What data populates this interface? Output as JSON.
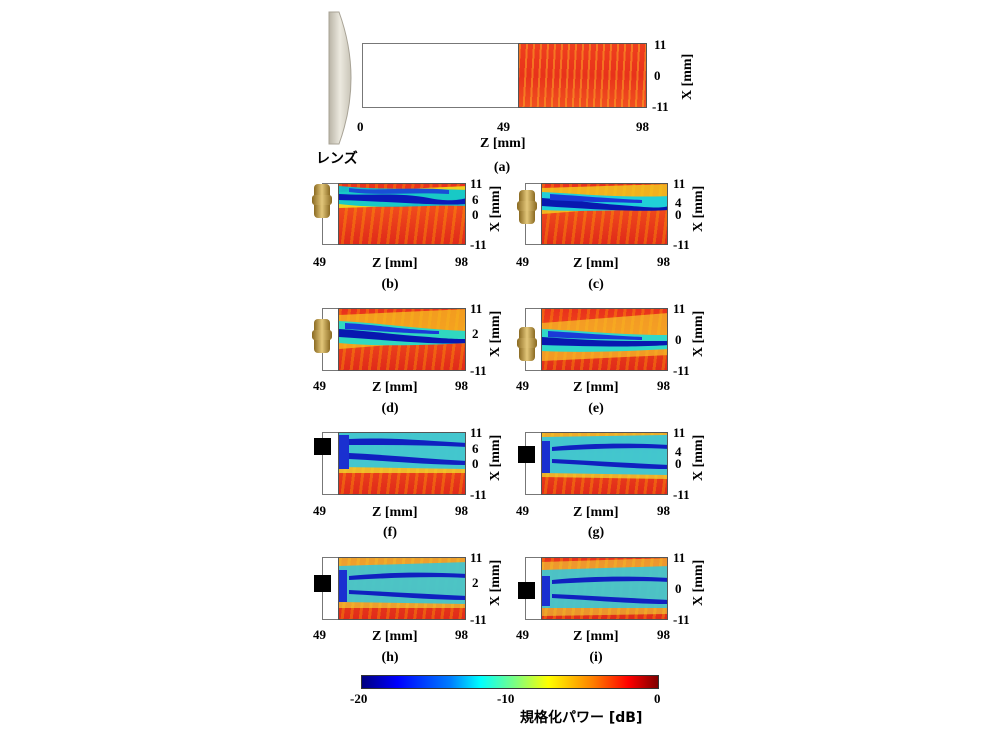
{
  "top_panel": {
    "lens_label": "レンズ",
    "x_ticks": [
      "0",
      "49",
      "98"
    ],
    "x_label": "Z [mm]",
    "y_ticks": [
      "11",
      "0",
      "-11"
    ],
    "y_label": "X [mm]",
    "caption": "(a)"
  },
  "panels": [
    {
      "caption": "(b)",
      "scatterer": "brass-cylinder",
      "y_ticks": [
        "11",
        "6",
        "0",
        "-11"
      ]
    },
    {
      "caption": "(c)",
      "scatterer": "brass-cylinder",
      "y_ticks": [
        "11",
        "4",
        "0",
        "-11"
      ]
    },
    {
      "caption": "(d)",
      "scatterer": "brass-cylinder",
      "y_ticks": [
        "11",
        "2",
        "-11"
      ]
    },
    {
      "caption": "(e)",
      "scatterer": "brass-cylinder",
      "y_ticks": [
        "11",
        "0",
        "-11"
      ]
    },
    {
      "caption": "(f)",
      "scatterer": "black-square",
      "y_ticks": [
        "11",
        "6",
        "0",
        "-11"
      ]
    },
    {
      "caption": "(g)",
      "scatterer": "black-square",
      "y_ticks": [
        "11",
        "4",
        "0",
        "-11"
      ]
    },
    {
      "caption": "(h)",
      "scatterer": "black-square",
      "y_ticks": [
        "11",
        "2",
        "-11"
      ]
    },
    {
      "caption": "(i)",
      "scatterer": "black-square",
      "y_ticks": [
        "11",
        "0",
        "-11"
      ]
    }
  ],
  "panel_axes": {
    "x_ticks": [
      "49",
      "98"
    ],
    "x_label": "Z [mm]",
    "y_label": "X [mm]"
  },
  "colorbar": {
    "ticks": [
      "-20",
      "-10",
      "0"
    ],
    "label": "規格化パワー [dB]",
    "colormap": "jet"
  }
}
